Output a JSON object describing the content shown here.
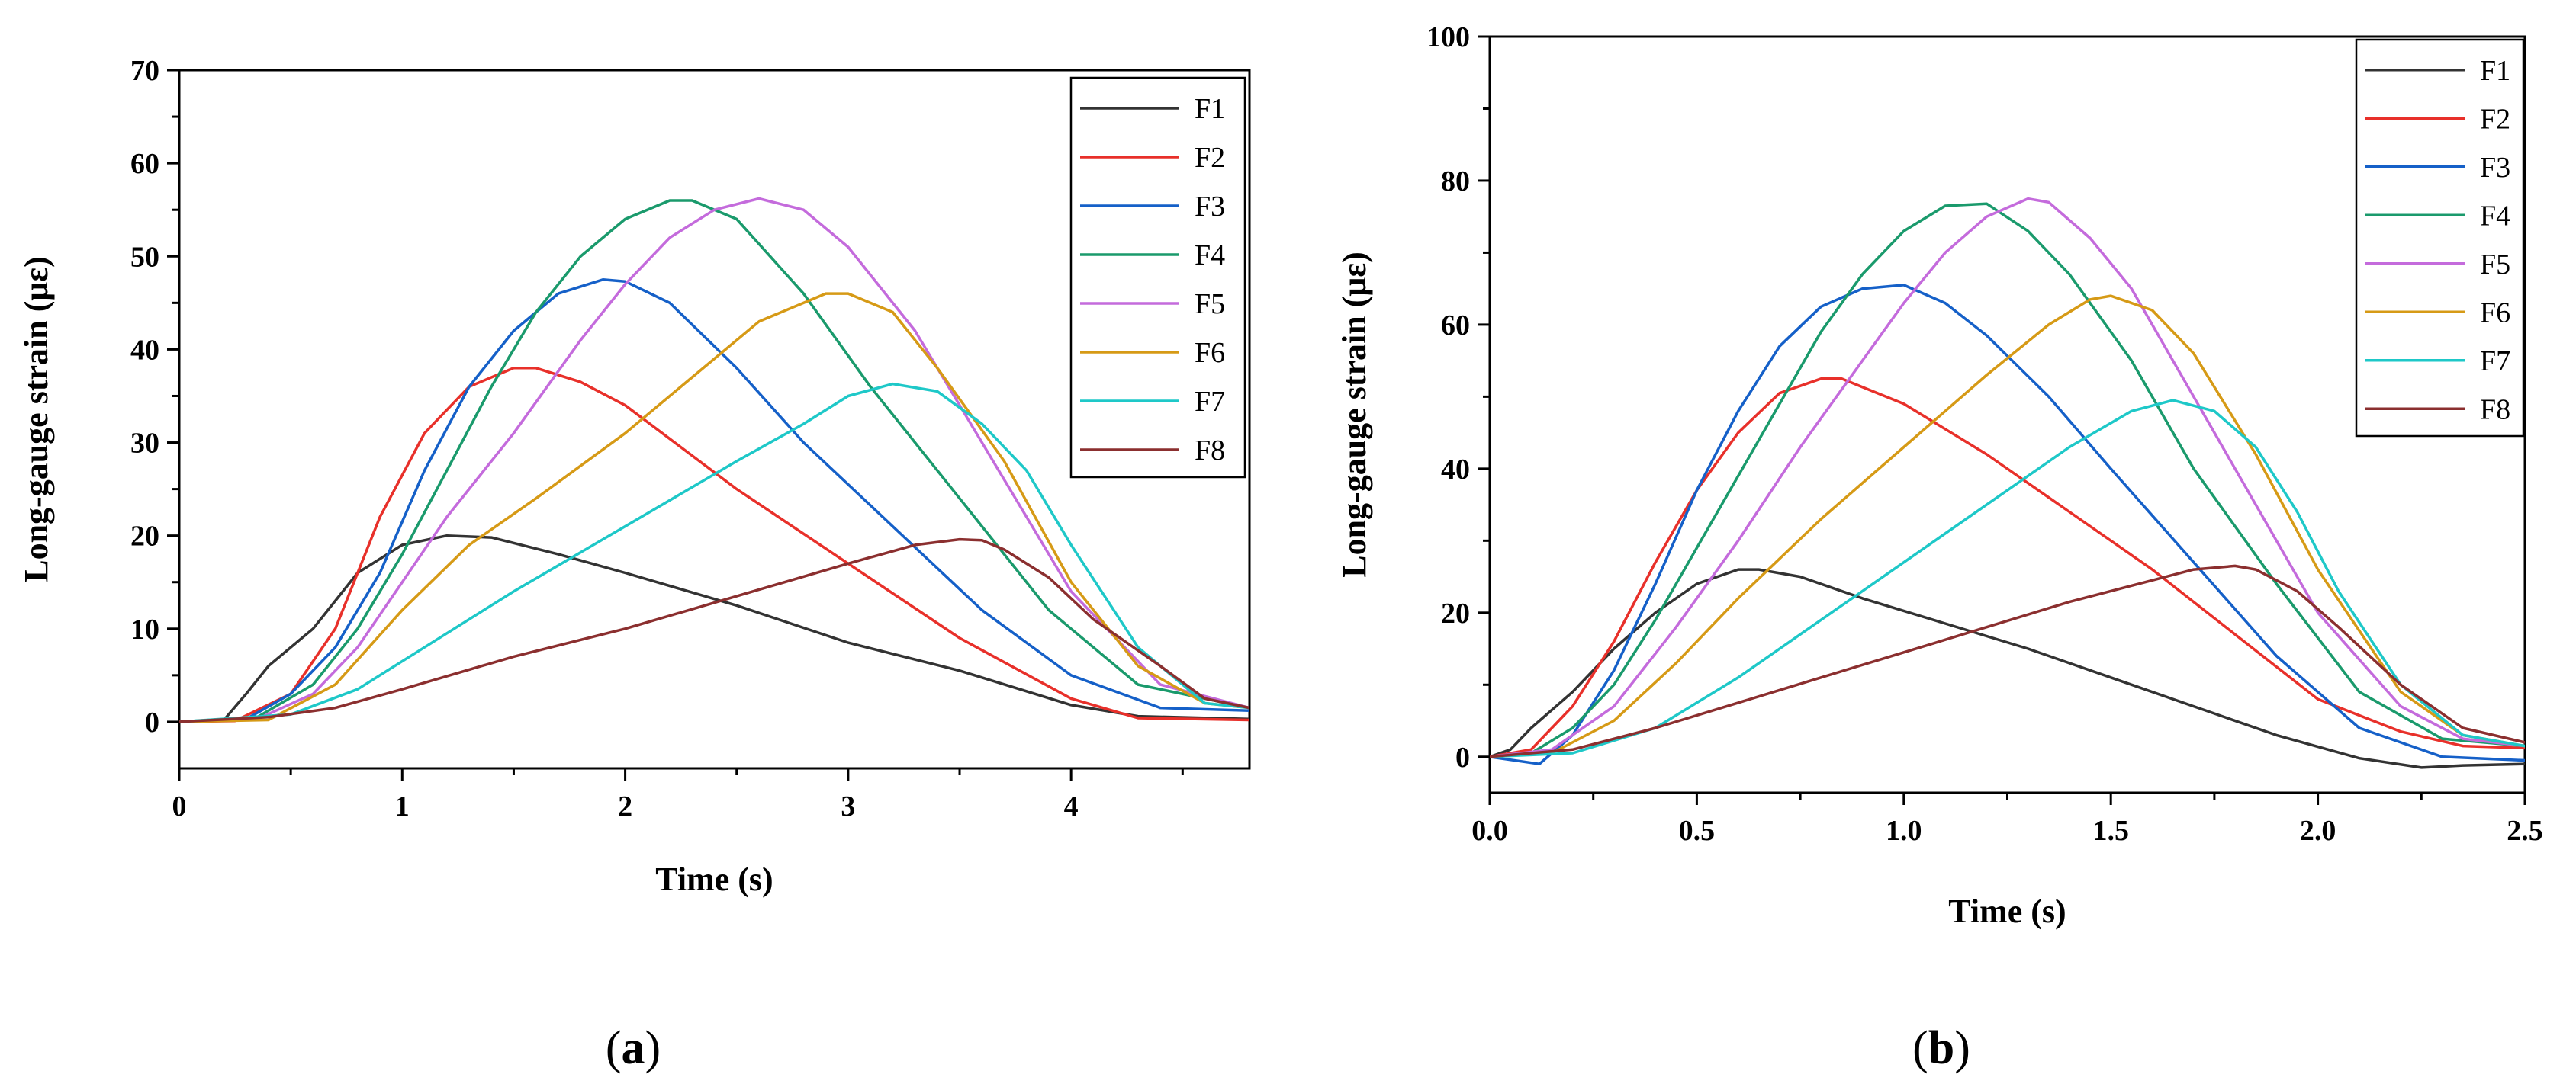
{
  "chart_data": [
    {
      "type": "line",
      "panel": "a",
      "caption": "a",
      "xlabel": "Time (s)",
      "ylabel": "Long-gauge strain (με)",
      "xlim": [
        0,
        4.8
      ],
      "ylim": [
        -5,
        70
      ],
      "xticks": [
        0,
        1,
        2,
        3,
        4
      ],
      "yticks": [
        0,
        10,
        20,
        30,
        40,
        50,
        60,
        70
      ],
      "legend_position": "top-right",
      "series": [
        {
          "name": "F1",
          "color": "#333333",
          "x": [
            0,
            0.2,
            0.3,
            0.4,
            0.6,
            0.8,
            1.0,
            1.2,
            1.4,
            1.7,
            2.0,
            2.5,
            3.0,
            3.5,
            4.0,
            4.3,
            4.8
          ],
          "y": [
            0,
            0.2,
            3,
            6,
            10,
            16,
            19,
            20,
            19.8,
            18,
            16,
            12.5,
            8.5,
            5.5,
            1.8,
            0.6,
            0.3
          ]
        },
        {
          "name": "F2",
          "color": "#e8302a",
          "x": [
            0,
            0.25,
            0.5,
            0.7,
            0.9,
            1.1,
            1.3,
            1.5,
            1.6,
            1.8,
            2.0,
            2.5,
            3.0,
            3.5,
            4.0,
            4.3,
            4.8
          ],
          "y": [
            0,
            0.1,
            3,
            10,
            22,
            31,
            36,
            38,
            38,
            36.5,
            34,
            25,
            17,
            9,
            2.5,
            0.4,
            0.2
          ]
        },
        {
          "name": "F3",
          "color": "#1560c8",
          "x": [
            0,
            0.3,
            0.5,
            0.7,
            0.9,
            1.1,
            1.3,
            1.5,
            1.7,
            1.9,
            2.0,
            2.2,
            2.5,
            2.8,
            3.2,
            3.6,
            4.0,
            4.4,
            4.8
          ],
          "y": [
            0,
            0.3,
            3,
            8,
            16,
            27,
            36,
            42,
            46,
            47.5,
            47.3,
            45,
            38,
            30,
            21,
            12,
            5,
            1.5,
            1.2
          ]
        },
        {
          "name": "F4",
          "color": "#1a9a6c",
          "x": [
            0,
            0.35,
            0.6,
            0.8,
            1.0,
            1.2,
            1.4,
            1.6,
            1.8,
            2.0,
            2.2,
            2.3,
            2.5,
            2.8,
            3.1,
            3.5,
            3.9,
            4.3,
            4.8
          ],
          "y": [
            0,
            0.5,
            4,
            10,
            18,
            27,
            36,
            44,
            50,
            54,
            56,
            56,
            54,
            46,
            36,
            24,
            12,
            4,
            1.5
          ]
        },
        {
          "name": "F5",
          "color": "#c46bdc",
          "x": [
            0,
            0.35,
            0.6,
            0.8,
            1.0,
            1.2,
            1.5,
            1.8,
            2.0,
            2.2,
            2.4,
            2.6,
            2.8,
            3.0,
            3.3,
            3.6,
            4.0,
            4.4,
            4.8
          ],
          "y": [
            0,
            0.3,
            3,
            8,
            15,
            22,
            31,
            41,
            47,
            52,
            55,
            56.2,
            55,
            51,
            42,
            30,
            14,
            4,
            1.5
          ]
        },
        {
          "name": "F6",
          "color": "#d69a16",
          "x": [
            0,
            0.4,
            0.7,
            1.0,
            1.3,
            1.6,
            2.0,
            2.3,
            2.6,
            2.9,
            3.0,
            3.2,
            3.4,
            3.7,
            4.0,
            4.3,
            4.6,
            4.8
          ],
          "y": [
            0,
            0.2,
            4,
            12,
            19,
            24,
            31,
            37,
            43,
            46,
            46,
            44,
            38,
            28,
            15,
            6,
            2,
            1.5
          ]
        },
        {
          "name": "F7",
          "color": "#1ec8c8",
          "x": [
            0,
            0.5,
            0.8,
            1.1,
            1.5,
            2.0,
            2.5,
            2.8,
            3.0,
            3.2,
            3.4,
            3.6,
            3.8,
            4.0,
            4.3,
            4.6,
            4.8
          ],
          "y": [
            0,
            0.8,
            3.5,
            8,
            14,
            21,
            28,
            32,
            35,
            36.3,
            35.5,
            32,
            27,
            19,
            8,
            2,
            1.5
          ]
        },
        {
          "name": "F8",
          "color": "#8b2f2f",
          "x": [
            0,
            0.4,
            0.7,
            1.0,
            1.5,
            2.0,
            2.5,
            3.0,
            3.3,
            3.5,
            3.6,
            3.7,
            3.9,
            4.1,
            4.4,
            4.6,
            4.8
          ],
          "y": [
            0,
            0.5,
            1.5,
            3.5,
            7,
            10,
            13.5,
            17,
            19,
            19.6,
            19.5,
            18.5,
            15.5,
            11,
            6,
            2.5,
            1.5
          ]
        }
      ]
    },
    {
      "type": "line",
      "panel": "b",
      "caption": "b",
      "xlabel": "Time (s)",
      "ylabel": "Long-gauge strain (με)",
      "xlim": [
        0,
        2.5
      ],
      "ylim": [
        -5,
        100
      ],
      "xticks": [
        0.0,
        0.5,
        1.0,
        1.5,
        2.0,
        2.5
      ],
      "xtick_labels": [
        "0.0",
        "0.5",
        "1.0",
        "1.5",
        "2.0",
        "2.5"
      ],
      "yticks": [
        0,
        20,
        40,
        60,
        80,
        100
      ],
      "legend_position": "top-right",
      "series": [
        {
          "name": "F1",
          "color": "#333333",
          "x": [
            0,
            0.05,
            0.1,
            0.2,
            0.3,
            0.4,
            0.5,
            0.6,
            0.65,
            0.75,
            0.9,
            1.1,
            1.3,
            1.5,
            1.7,
            1.9,
            2.1,
            2.25,
            2.35,
            2.5
          ],
          "y": [
            0,
            1,
            4,
            9,
            15,
            20,
            24,
            26,
            26,
            25,
            22,
            18.5,
            15,
            11,
            7,
            3,
            -0.2,
            -1.5,
            -1.2,
            -1
          ]
        },
        {
          "name": "F2",
          "color": "#e8302a",
          "x": [
            0,
            0.1,
            0.2,
            0.3,
            0.4,
            0.5,
            0.6,
            0.7,
            0.8,
            0.85,
            1.0,
            1.2,
            1.4,
            1.6,
            1.8,
            2.0,
            2.2,
            2.35,
            2.5
          ],
          "y": [
            0,
            1,
            7,
            16,
            27,
            37,
            45,
            50.5,
            52.5,
            52.5,
            49,
            42,
            34,
            26,
            17,
            8,
            3.5,
            1.5,
            1.2
          ]
        },
        {
          "name": "F3",
          "color": "#1560c8",
          "x": [
            0,
            0.12,
            0.2,
            0.3,
            0.4,
            0.5,
            0.6,
            0.7,
            0.8,
            0.9,
            1.0,
            1.1,
            1.2,
            1.35,
            1.5,
            1.7,
            1.9,
            2.1,
            2.3,
            2.5
          ],
          "y": [
            0,
            -1,
            3,
            12,
            24,
            37,
            48,
            57,
            62.5,
            65,
            65.5,
            63,
            58.5,
            50,
            40,
            27,
            14,
            4,
            0,
            -0.5
          ]
        },
        {
          "name": "F4",
          "color": "#1a9a6c",
          "x": [
            0,
            0.1,
            0.2,
            0.3,
            0.4,
            0.5,
            0.6,
            0.7,
            0.8,
            0.9,
            1.0,
            1.1,
            1.2,
            1.3,
            1.4,
            1.55,
            1.7,
            1.9,
            2.1,
            2.3,
            2.5
          ],
          "y": [
            0,
            0.5,
            4,
            10,
            19,
            29,
            39,
            49,
            59,
            67,
            73,
            76.5,
            76.8,
            73,
            67,
            55,
            40,
            24,
            9,
            2.5,
            1.5
          ]
        },
        {
          "name": "F5",
          "color": "#c46bdc",
          "x": [
            0,
            0.15,
            0.3,
            0.45,
            0.6,
            0.75,
            0.9,
            1.0,
            1.1,
            1.2,
            1.3,
            1.35,
            1.45,
            1.55,
            1.7,
            1.85,
            2.0,
            2.2,
            2.35,
            2.5
          ],
          "y": [
            0,
            1,
            7,
            18,
            30,
            43,
            55,
            63,
            70,
            75,
            77.5,
            77,
            72,
            65,
            50,
            35,
            20,
            7,
            2.5,
            1.5
          ]
        },
        {
          "name": "F6",
          "color": "#d69a16",
          "x": [
            0,
            0.15,
            0.3,
            0.45,
            0.6,
            0.8,
            1.0,
            1.2,
            1.35,
            1.45,
            1.5,
            1.6,
            1.7,
            1.85,
            2.0,
            2.2,
            2.35,
            2.5
          ],
          "y": [
            0,
            0.5,
            5,
            13,
            22,
            33,
            43,
            53,
            60,
            63.5,
            64,
            62,
            56,
            42,
            26,
            9,
            3,
            1.5
          ]
        },
        {
          "name": "F7",
          "color": "#1ec8c8",
          "x": [
            0,
            0.2,
            0.4,
            0.6,
            0.8,
            1.0,
            1.2,
            1.4,
            1.55,
            1.65,
            1.75,
            1.85,
            1.95,
            2.05,
            2.2,
            2.35,
            2.5
          ],
          "y": [
            0,
            0.5,
            4,
            11,
            19,
            27,
            35,
            43,
            48,
            49.5,
            48,
            43,
            34,
            23,
            10,
            3,
            1.5
          ]
        },
        {
          "name": "F8",
          "color": "#8b2f2f",
          "x": [
            0,
            0.2,
            0.4,
            0.6,
            0.8,
            1.0,
            1.2,
            1.4,
            1.6,
            1.7,
            1.8,
            1.85,
            1.95,
            2.05,
            2.2,
            2.35,
            2.5
          ],
          "y": [
            0,
            1,
            4,
            7.5,
            11,
            14.5,
            18,
            21.5,
            24.5,
            26,
            26.5,
            26,
            23,
            18,
            10,
            4,
            2
          ]
        }
      ]
    }
  ]
}
